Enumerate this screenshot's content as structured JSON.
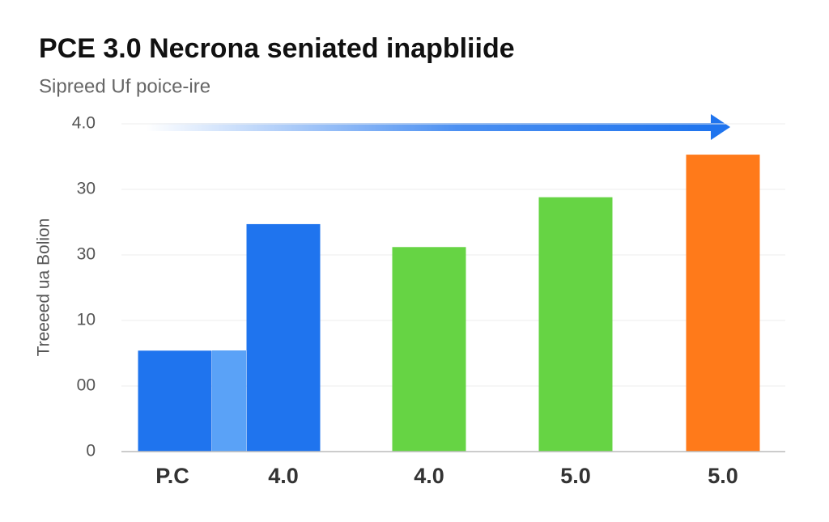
{
  "chart_data": {
    "type": "bar",
    "title": "PCE 3.0 Necrona seniated inapbliide",
    "subtitle": "Sipreed Uf poice-ire",
    "y_label": "Treeeed ua Bolion",
    "categories": [
      "P.C",
      "4.0",
      "4.0",
      "5.0",
      "5.0"
    ],
    "values": [
      15.4,
      34.7,
      31.2,
      38.8,
      45.3
    ],
    "colors": [
      "#1f74ee",
      "#1f74ee",
      "#66d444",
      "#66d444",
      "#ff7a1a"
    ],
    "ylim": [
      0,
      50
    ],
    "yticks": [
      0,
      {
        "value": 10,
        "label": "00"
      },
      {
        "value": 20,
        "label": "10"
      },
      30,
      {
        "value": 40,
        "label": "30"
      },
      {
        "value": 50,
        "label": "4.0"
      }
    ],
    "grid": true
  }
}
